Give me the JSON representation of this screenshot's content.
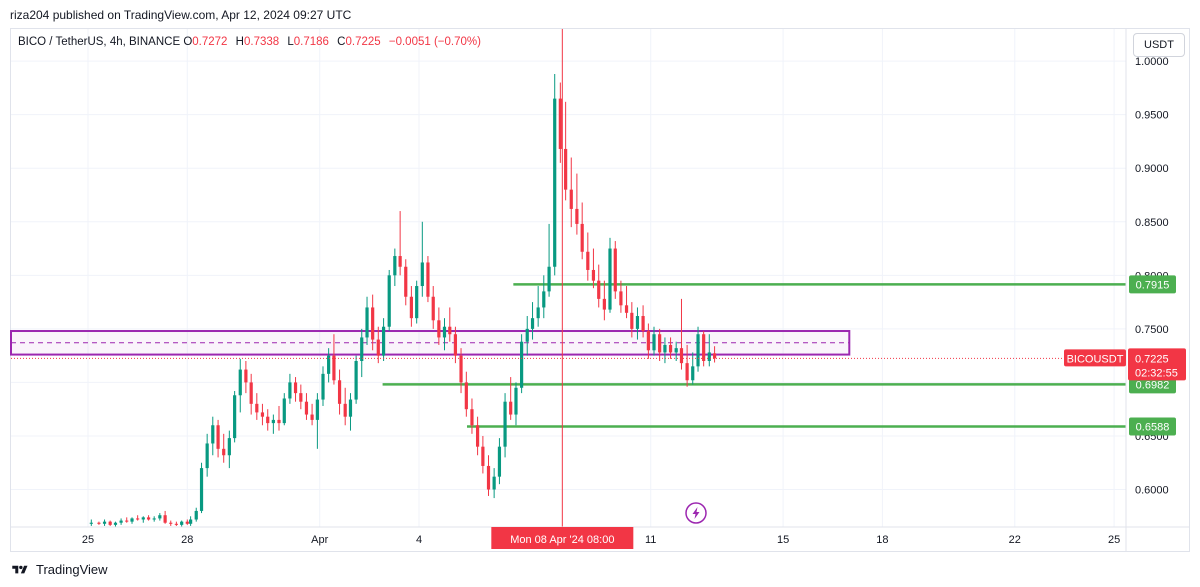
{
  "header": {
    "publisher": "riza204 published on TradingView.com, Apr 12, 2024 09:27 UTC"
  },
  "ohlc": {
    "symbol": "BICO / TetherUS, 4h, BINANCE",
    "o_label": "O",
    "o": "0.7272",
    "h_label": "H",
    "h": "0.7338",
    "l_label": "L",
    "l": "0.7186",
    "c_label": "C",
    "c": "0.7225",
    "change": "−0.0051 (−0.70%)"
  },
  "currency_button": "USDT",
  "footer": {
    "brand": "TradingView"
  },
  "colors": {
    "up": "#089981",
    "down": "#f23645",
    "support": "#4caf50",
    "zone": "#9c27b0",
    "crosshair": "#f23645"
  },
  "chart_data": {
    "type": "candlestick",
    "y_range": [
      0.565,
      1.03
    ],
    "y_ticks": [
      "1.0000",
      "0.9500",
      "0.9000",
      "0.8500",
      "0.8000",
      "0.7500",
      "0.7000",
      "0.6500",
      "0.6000"
    ],
    "y_tick_values": [
      1.0,
      0.95,
      0.9,
      0.85,
      0.8,
      0.75,
      0.7,
      0.65,
      0.6
    ],
    "x_ticks": [
      {
        "label": "25",
        "day": 0
      },
      {
        "label": "28",
        "day": 3
      },
      {
        "label": "Apr",
        "day": 7
      },
      {
        "label": "4",
        "day": 10
      },
      {
        "label": "11",
        "day": 17
      },
      {
        "label": "15",
        "day": 21
      },
      {
        "label": "18",
        "day": 24
      },
      {
        "label": "22",
        "day": 28
      },
      {
        "label": "25",
        "day": 31
      }
    ],
    "crosshair": {
      "label": "Mon 08 Apr '24   08:00",
      "day": 14.33
    },
    "price_tag": {
      "symbol": "BICOUSDT",
      "price": "0.7225",
      "countdown": "02:32:55",
      "value": 0.7225
    },
    "support_lines": [
      {
        "label": "0.7915",
        "value": 0.7915,
        "from_day": 12.85
      },
      {
        "label": "0.6982",
        "value": 0.6982,
        "from_day": 8.9
      },
      {
        "label": "0.6588",
        "value": 0.6588,
        "from_day": 11.45
      }
    ],
    "zone": {
      "top": 0.748,
      "bottom": 0.726,
      "mid": 0.737,
      "to_day": 23.0
    },
    "candles": [
      [
        0.1,
        0.568,
        0.572,
        0.566,
        0.569
      ],
      [
        0.33,
        0.569,
        0.57,
        0.567,
        0.568
      ],
      [
        0.5,
        0.568,
        0.572,
        0.566,
        0.57
      ],
      [
        0.67,
        0.57,
        0.571,
        0.566,
        0.567
      ],
      [
        0.83,
        0.567,
        0.57,
        0.565,
        0.569
      ],
      [
        1.0,
        0.569,
        0.573,
        0.567,
        0.571
      ],
      [
        1.17,
        0.571,
        0.574,
        0.569,
        0.57
      ],
      [
        1.33,
        0.57,
        0.574,
        0.568,
        0.573
      ],
      [
        1.5,
        0.573,
        0.576,
        0.571,
        0.572
      ],
      [
        1.67,
        0.572,
        0.575,
        0.569,
        0.574
      ],
      [
        1.83,
        0.574,
        0.576,
        0.571,
        0.572
      ],
      [
        2.0,
        0.572,
        0.575,
        0.57,
        0.573
      ],
      [
        2.17,
        0.573,
        0.578,
        0.571,
        0.576
      ],
      [
        2.33,
        0.576,
        0.58,
        0.568,
        0.569
      ],
      [
        2.5,
        0.569,
        0.571,
        0.566,
        0.568
      ],
      [
        2.67,
        0.568,
        0.57,
        0.566,
        0.567
      ],
      [
        2.83,
        0.567,
        0.571,
        0.565,
        0.57
      ],
      [
        3.0,
        0.57,
        0.572,
        0.567,
        0.568
      ],
      [
        3.1,
        0.568,
        0.575,
        0.566,
        0.572
      ],
      [
        3.27,
        0.572,
        0.583,
        0.57,
        0.58
      ],
      [
        3.43,
        0.58,
        0.625,
        0.578,
        0.62
      ],
      [
        3.6,
        0.62,
        0.652,
        0.612,
        0.643
      ],
      [
        3.77,
        0.643,
        0.668,
        0.632,
        0.66
      ],
      [
        3.93,
        0.66,
        0.665,
        0.63,
        0.638
      ],
      [
        4.1,
        0.638,
        0.652,
        0.625,
        0.632
      ],
      [
        4.27,
        0.632,
        0.655,
        0.62,
        0.648
      ],
      [
        4.43,
        0.648,
        0.692,
        0.644,
        0.688
      ],
      [
        4.6,
        0.688,
        0.722,
        0.672,
        0.712
      ],
      [
        4.77,
        0.712,
        0.72,
        0.69,
        0.7
      ],
      [
        4.93,
        0.7,
        0.708,
        0.67,
        0.68
      ],
      [
        5.1,
        0.68,
        0.69,
        0.665,
        0.672
      ],
      [
        5.27,
        0.672,
        0.68,
        0.66,
        0.668
      ],
      [
        5.43,
        0.668,
        0.675,
        0.655,
        0.662
      ],
      [
        5.6,
        0.662,
        0.67,
        0.652,
        0.665
      ],
      [
        5.77,
        0.665,
        0.678,
        0.655,
        0.662
      ],
      [
        5.93,
        0.662,
        0.69,
        0.66,
        0.685
      ],
      [
        6.1,
        0.685,
        0.708,
        0.68,
        0.7
      ],
      [
        6.27,
        0.7,
        0.705,
        0.682,
        0.69
      ],
      [
        6.43,
        0.69,
        0.698,
        0.675,
        0.682
      ],
      [
        6.6,
        0.682,
        0.69,
        0.665,
        0.67
      ],
      [
        6.77,
        0.67,
        0.68,
        0.66,
        0.665
      ],
      [
        6.93,
        0.665,
        0.69,
        0.638,
        0.684
      ],
      [
        7.1,
        0.684,
        0.715,
        0.678,
        0.708
      ],
      [
        7.27,
        0.708,
        0.732,
        0.7,
        0.725
      ],
      [
        7.43,
        0.725,
        0.745,
        0.698,
        0.702
      ],
      [
        7.6,
        0.702,
        0.712,
        0.67,
        0.68
      ],
      [
        7.77,
        0.68,
        0.695,
        0.66,
        0.668
      ],
      [
        7.93,
        0.668,
        0.69,
        0.655,
        0.684
      ],
      [
        8.1,
        0.684,
        0.725,
        0.68,
        0.72
      ],
      [
        8.27,
        0.72,
        0.75,
        0.705,
        0.742
      ],
      [
        8.43,
        0.742,
        0.78,
        0.735,
        0.77
      ],
      [
        8.6,
        0.77,
        0.782,
        0.73,
        0.74
      ],
      [
        8.77,
        0.74,
        0.752,
        0.718,
        0.725
      ],
      [
        8.93,
        0.725,
        0.76,
        0.72,
        0.752
      ],
      [
        9.1,
        0.752,
        0.805,
        0.748,
        0.8
      ],
      [
        9.27,
        0.8,
        0.825,
        0.79,
        0.818
      ],
      [
        9.43,
        0.818,
        0.86,
        0.8,
        0.808
      ],
      [
        9.6,
        0.808,
        0.815,
        0.772,
        0.78
      ],
      [
        9.77,
        0.78,
        0.79,
        0.752,
        0.76
      ],
      [
        9.93,
        0.76,
        0.795,
        0.755,
        0.79
      ],
      [
        10.1,
        0.79,
        0.85,
        0.78,
        0.812
      ],
      [
        10.27,
        0.812,
        0.818,
        0.775,
        0.78
      ],
      [
        10.43,
        0.78,
        0.79,
        0.75,
        0.758
      ],
      [
        10.6,
        0.758,
        0.77,
        0.735,
        0.742
      ],
      [
        10.77,
        0.742,
        0.76,
        0.73,
        0.752
      ],
      [
        10.93,
        0.752,
        0.77,
        0.738,
        0.745
      ],
      [
        11.1,
        0.745,
        0.752,
        0.718,
        0.725
      ],
      [
        11.27,
        0.725,
        0.732,
        0.69,
        0.7
      ],
      [
        11.43,
        0.7,
        0.71,
        0.668,
        0.675
      ],
      [
        11.6,
        0.675,
        0.685,
        0.652,
        0.66
      ],
      [
        11.77,
        0.66,
        0.668,
        0.632,
        0.64
      ],
      [
        11.93,
        0.64,
        0.65,
        0.615,
        0.622
      ],
      [
        12.1,
        0.622,
        0.632,
        0.594,
        0.6
      ],
      [
        12.27,
        0.6,
        0.62,
        0.592,
        0.612
      ],
      [
        12.43,
        0.612,
        0.648,
        0.605,
        0.64
      ],
      [
        12.6,
        0.64,
        0.69,
        0.63,
        0.682
      ],
      [
        12.77,
        0.682,
        0.705,
        0.665,
        0.67
      ],
      [
        12.93,
        0.67,
        0.7,
        0.66,
        0.695
      ],
      [
        13.1,
        0.695,
        0.745,
        0.69,
        0.738
      ],
      [
        13.27,
        0.738,
        0.762,
        0.725,
        0.75
      ],
      [
        13.43,
        0.75,
        0.775,
        0.74,
        0.76
      ],
      [
        13.6,
        0.76,
        0.79,
        0.752,
        0.77
      ],
      [
        13.77,
        0.77,
        0.8,
        0.76,
        0.785
      ],
      [
        13.93,
        0.785,
        0.848,
        0.78,
        0.808
      ],
      [
        14.1,
        0.808,
        0.988,
        0.8,
        0.965
      ],
      [
        14.27,
        0.965,
        0.98,
        0.905,
        0.918
      ],
      [
        14.43,
        0.918,
        0.962,
        0.87,
        0.88
      ],
      [
        14.6,
        0.88,
        0.91,
        0.845,
        0.862
      ],
      [
        14.77,
        0.862,
        0.895,
        0.838,
        0.848
      ],
      [
        14.93,
        0.848,
        0.868,
        0.815,
        0.822
      ],
      [
        15.1,
        0.822,
        0.84,
        0.795,
        0.805
      ],
      [
        15.27,
        0.805,
        0.825,
        0.788,
        0.795
      ],
      [
        15.43,
        0.795,
        0.81,
        0.77,
        0.778
      ],
      [
        15.6,
        0.778,
        0.795,
        0.758,
        0.768
      ],
      [
        15.77,
        0.768,
        0.835,
        0.765,
        0.825
      ],
      [
        15.93,
        0.825,
        0.832,
        0.778,
        0.785
      ],
      [
        16.1,
        0.785,
        0.795,
        0.765,
        0.772
      ],
      [
        16.27,
        0.772,
        0.79,
        0.76,
        0.765
      ],
      [
        16.43,
        0.765,
        0.775,
        0.742,
        0.75
      ],
      [
        16.6,
        0.75,
        0.77,
        0.74,
        0.762
      ],
      [
        16.77,
        0.762,
        0.772,
        0.742,
        0.748
      ],
      [
        16.93,
        0.748,
        0.755,
        0.722,
        0.73
      ],
      [
        17.1,
        0.73,
        0.752,
        0.725,
        0.745
      ],
      [
        17.27,
        0.745,
        0.75,
        0.72,
        0.728
      ],
      [
        17.43,
        0.728,
        0.742,
        0.718,
        0.735
      ],
      [
        17.6,
        0.735,
        0.742,
        0.722,
        0.728
      ],
      [
        17.77,
        0.728,
        0.738,
        0.72,
        0.732
      ],
      [
        17.93,
        0.732,
        0.778,
        0.712,
        0.718
      ],
      [
        18.1,
        0.718,
        0.735,
        0.696,
        0.702
      ],
      [
        18.27,
        0.702,
        0.728,
        0.698,
        0.715
      ],
      [
        18.43,
        0.715,
        0.752,
        0.71,
        0.745
      ],
      [
        18.6,
        0.745,
        0.748,
        0.715,
        0.72
      ],
      [
        18.77,
        0.72,
        0.745,
        0.715,
        0.728
      ],
      [
        18.93,
        0.7272,
        0.7338,
        0.7186,
        0.7225
      ]
    ]
  }
}
